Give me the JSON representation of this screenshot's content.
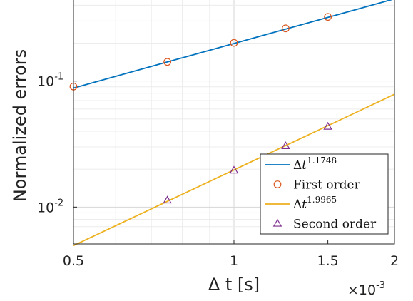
{
  "chart_data": {
    "type": "line",
    "xlabel": "Δ t [s]",
    "ylabel": "Normalized errors",
    "x_multiplier": "×10",
    "x_multiplier_exp": "-3",
    "x_scale": "log",
    "y_scale": "log",
    "xlim": [
      0.0005,
      0.002
    ],
    "ylim": [
      0.0051,
      0.44
    ],
    "grid": true,
    "legend_position": "bottom-right",
    "x_ticks": [
      {
        "value": 0.0005,
        "label": "0.5"
      },
      {
        "value": 0.001,
        "label": "1"
      },
      {
        "value": 0.0015,
        "label": "1.5"
      },
      {
        "value": 0.002,
        "label": "2"
      }
    ],
    "y_ticks": [
      {
        "value": 0.1,
        "label": "10",
        "exp": "-1"
      },
      {
        "value": 0.01,
        "label": "10",
        "exp": "-2"
      }
    ],
    "series": [
      {
        "name": "Δt^1.1748",
        "legend_base": "Δ",
        "legend_var": "t",
        "legend_exp": "1.1748",
        "kind": "fit",
        "color": "#0072BD",
        "x": [
          0.0005,
          0.002
        ],
        "y": [
          0.088,
          0.449
        ]
      },
      {
        "name": "First order",
        "kind": "marker",
        "marker": "circle",
        "color": "#D95319",
        "x": [
          0.0005,
          0.00075,
          0.001,
          0.00125,
          0.0015
        ],
        "y": [
          0.0905,
          0.142,
          0.201,
          0.262,
          0.323
        ]
      },
      {
        "name": "Δt^1.9965",
        "legend_base": "Δ",
        "legend_var": "t",
        "legend_exp": "1.9965",
        "kind": "fit",
        "color": "#EDB120",
        "x": [
          0.0005,
          0.002
        ],
        "y": [
          0.00495,
          0.0785
        ]
      },
      {
        "name": "Second order",
        "kind": "marker",
        "marker": "triangle",
        "color": "#7E2F8E",
        "x": [
          0.00075,
          0.001,
          0.00125,
          0.0015
        ],
        "y": [
          0.0113,
          0.0195,
          0.0305,
          0.0435
        ]
      }
    ]
  }
}
